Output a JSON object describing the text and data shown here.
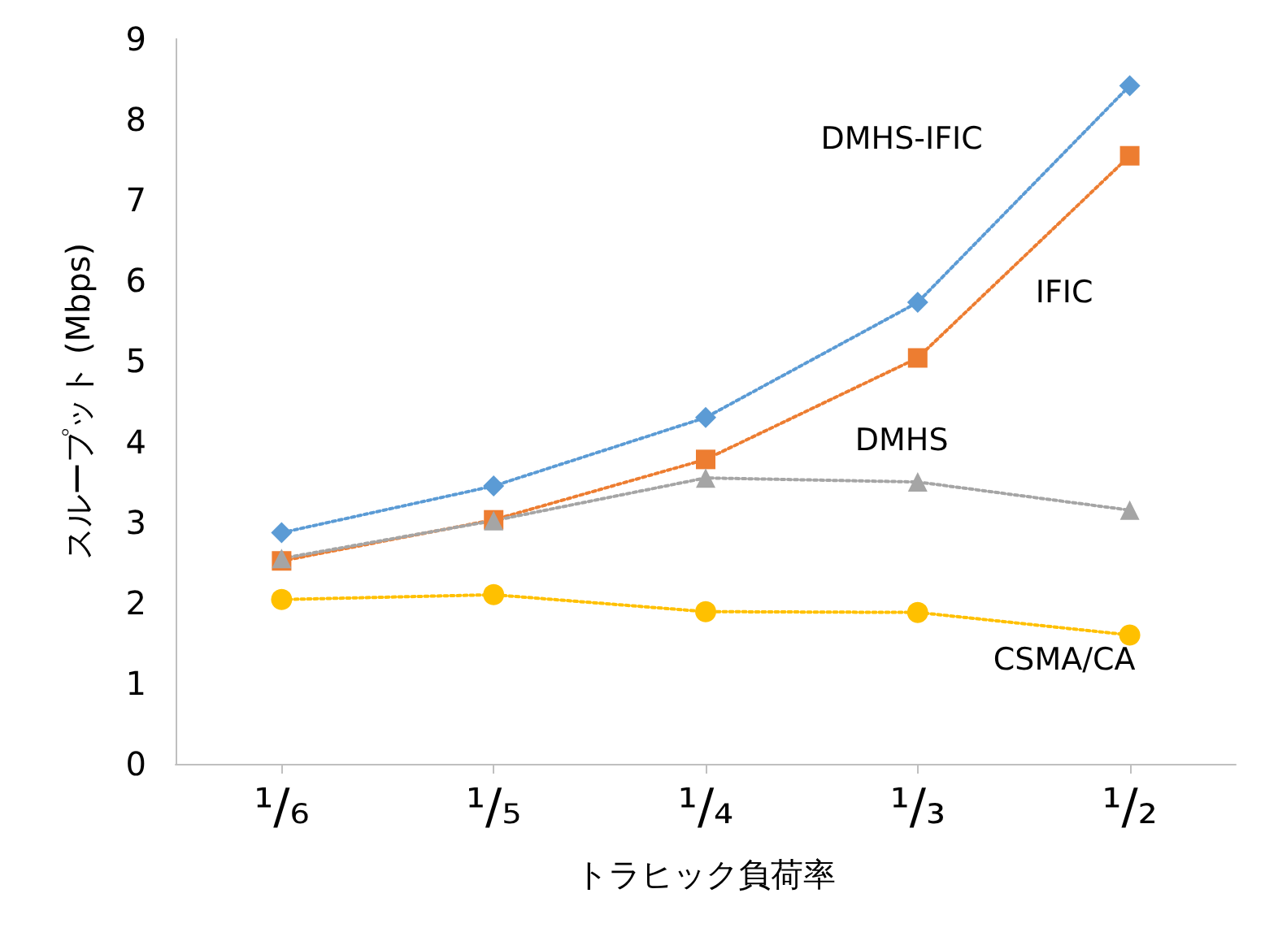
{
  "chart_data": {
    "type": "line",
    "xlabel": "トラヒック負荷率",
    "ylabel": "スループット (Mbps)",
    "categories": [
      "¹/₆",
      "¹/₅",
      "¹/₄",
      "¹/₃",
      "¹/₂"
    ],
    "ylim": [
      0,
      9
    ],
    "yticks": [
      0,
      1,
      2,
      3,
      4,
      5,
      6,
      7,
      8,
      9
    ],
    "grid": false,
    "legend": false,
    "line_style": "dotted",
    "series": [
      {
        "name": "DMHS-IFIC",
        "color": "#5b9bd5",
        "marker": "diamond",
        "values": [
          2.87,
          3.45,
          4.3,
          5.73,
          8.42
        ]
      },
      {
        "name": "IFIC",
        "color": "#ed7d31",
        "marker": "square",
        "values": [
          2.52,
          3.03,
          3.78,
          5.04,
          7.55
        ]
      },
      {
        "name": "DMHS",
        "color": "#a5a5a5",
        "marker": "triangle",
        "values": [
          2.55,
          3.02,
          3.55,
          3.5,
          3.15
        ]
      },
      {
        "name": "CSMA/CA",
        "color": "#ffc000",
        "marker": "circle",
        "values": [
          2.04,
          2.1,
          1.89,
          1.88,
          1.6
        ]
      }
    ]
  }
}
